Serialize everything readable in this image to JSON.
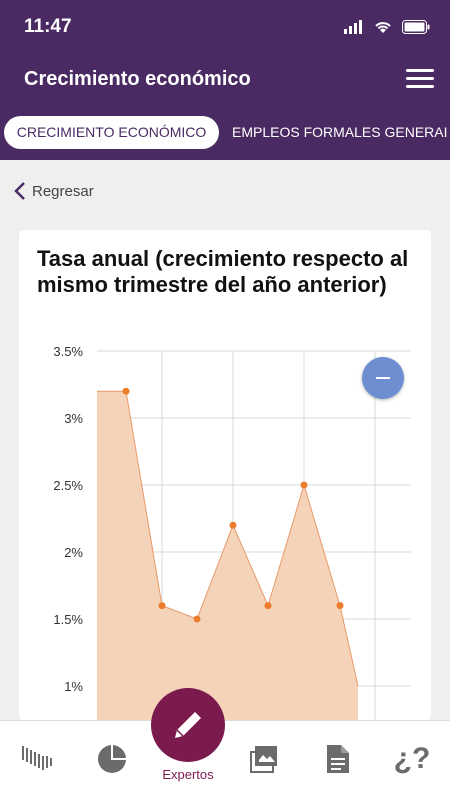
{
  "status_bar": {
    "time": "11:47"
  },
  "header": {
    "title": "Crecimiento económico"
  },
  "tabs": [
    {
      "label": "CRECIMIENTO ECONÓMICO",
      "active": true
    },
    {
      "label": "EMPLEOS FORMALES GENERAI",
      "active": false
    }
  ],
  "back": {
    "label": "Regresar"
  },
  "card": {
    "title": "Tasa anual (crecimiento respecto al mismo trimestre del año anterior)"
  },
  "chart_data": {
    "type": "area",
    "title": "Tasa anual (crecimiento respecto al mismo trimestre del año anterior)",
    "y_ticks": [
      "3.5%",
      "3%",
      "2.5%",
      "2%",
      "1.5%",
      "1%"
    ],
    "ylim": [
      1.0,
      3.5
    ],
    "values": [
      3.2,
      3.2,
      1.6,
      1.5,
      2.2,
      1.6,
      2.5,
      1.6,
      1.0
    ],
    "grid": true,
    "colors": {
      "fill": "#f5d3b8",
      "stroke": "#e89a6a",
      "point": "#ec7d2d"
    }
  },
  "bottom_nav": {
    "items": [
      "chart-bars-icon",
      "pie-chart-icon",
      "gallery-icon",
      "document-icon",
      "help-icon"
    ],
    "fab_label": "Expertos"
  },
  "colors": {
    "brand": "#4a2a63",
    "accent": "#7a1a4d"
  }
}
